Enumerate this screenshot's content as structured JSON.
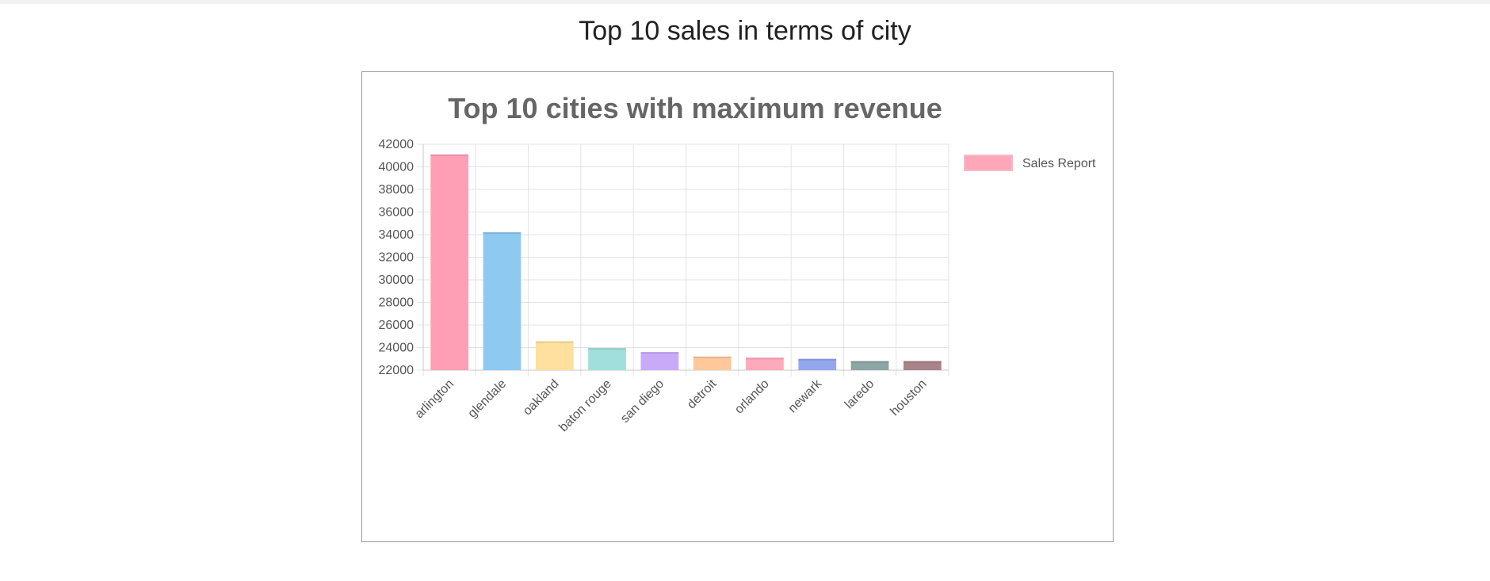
{
  "page": {
    "title": "Top 10 sales in terms of city"
  },
  "chart_data": {
    "type": "bar",
    "title": "Top 10 cities with maximum revenue",
    "categories": [
      "arlington",
      "glendale",
      "oakland",
      "baton rouge",
      "san diego",
      "detroit",
      "orlando",
      "newark",
      "laredo",
      "houston"
    ],
    "series": [
      {
        "name": "Sales Report",
        "values": [
          41100,
          34200,
          24550,
          23950,
          23600,
          23200,
          23100,
          23000,
          22800,
          22800
        ]
      }
    ],
    "colors": [
      "#ff9fb6",
      "#8ec9f1",
      "#ffe09e",
      "#a0dfdc",
      "#c9aaf9",
      "#ffc89b",
      "#ffa9bd",
      "#94a6ee",
      "#8ea5a5",
      "#a9838a"
    ],
    "legend_color": "#ffa6b8",
    "legend_border": "#f2bcc8",
    "grid_color": "#e3e3e3",
    "axis_color": "#c9c9c9",
    "ylim": [
      22000,
      42000
    ],
    "yticks": [
      42000,
      40000,
      38000,
      36000,
      34000,
      32000,
      30000,
      28000,
      26000,
      24000,
      22000
    ],
    "grid": true,
    "legend_position": "right",
    "xlabel": "",
    "ylabel": ""
  }
}
